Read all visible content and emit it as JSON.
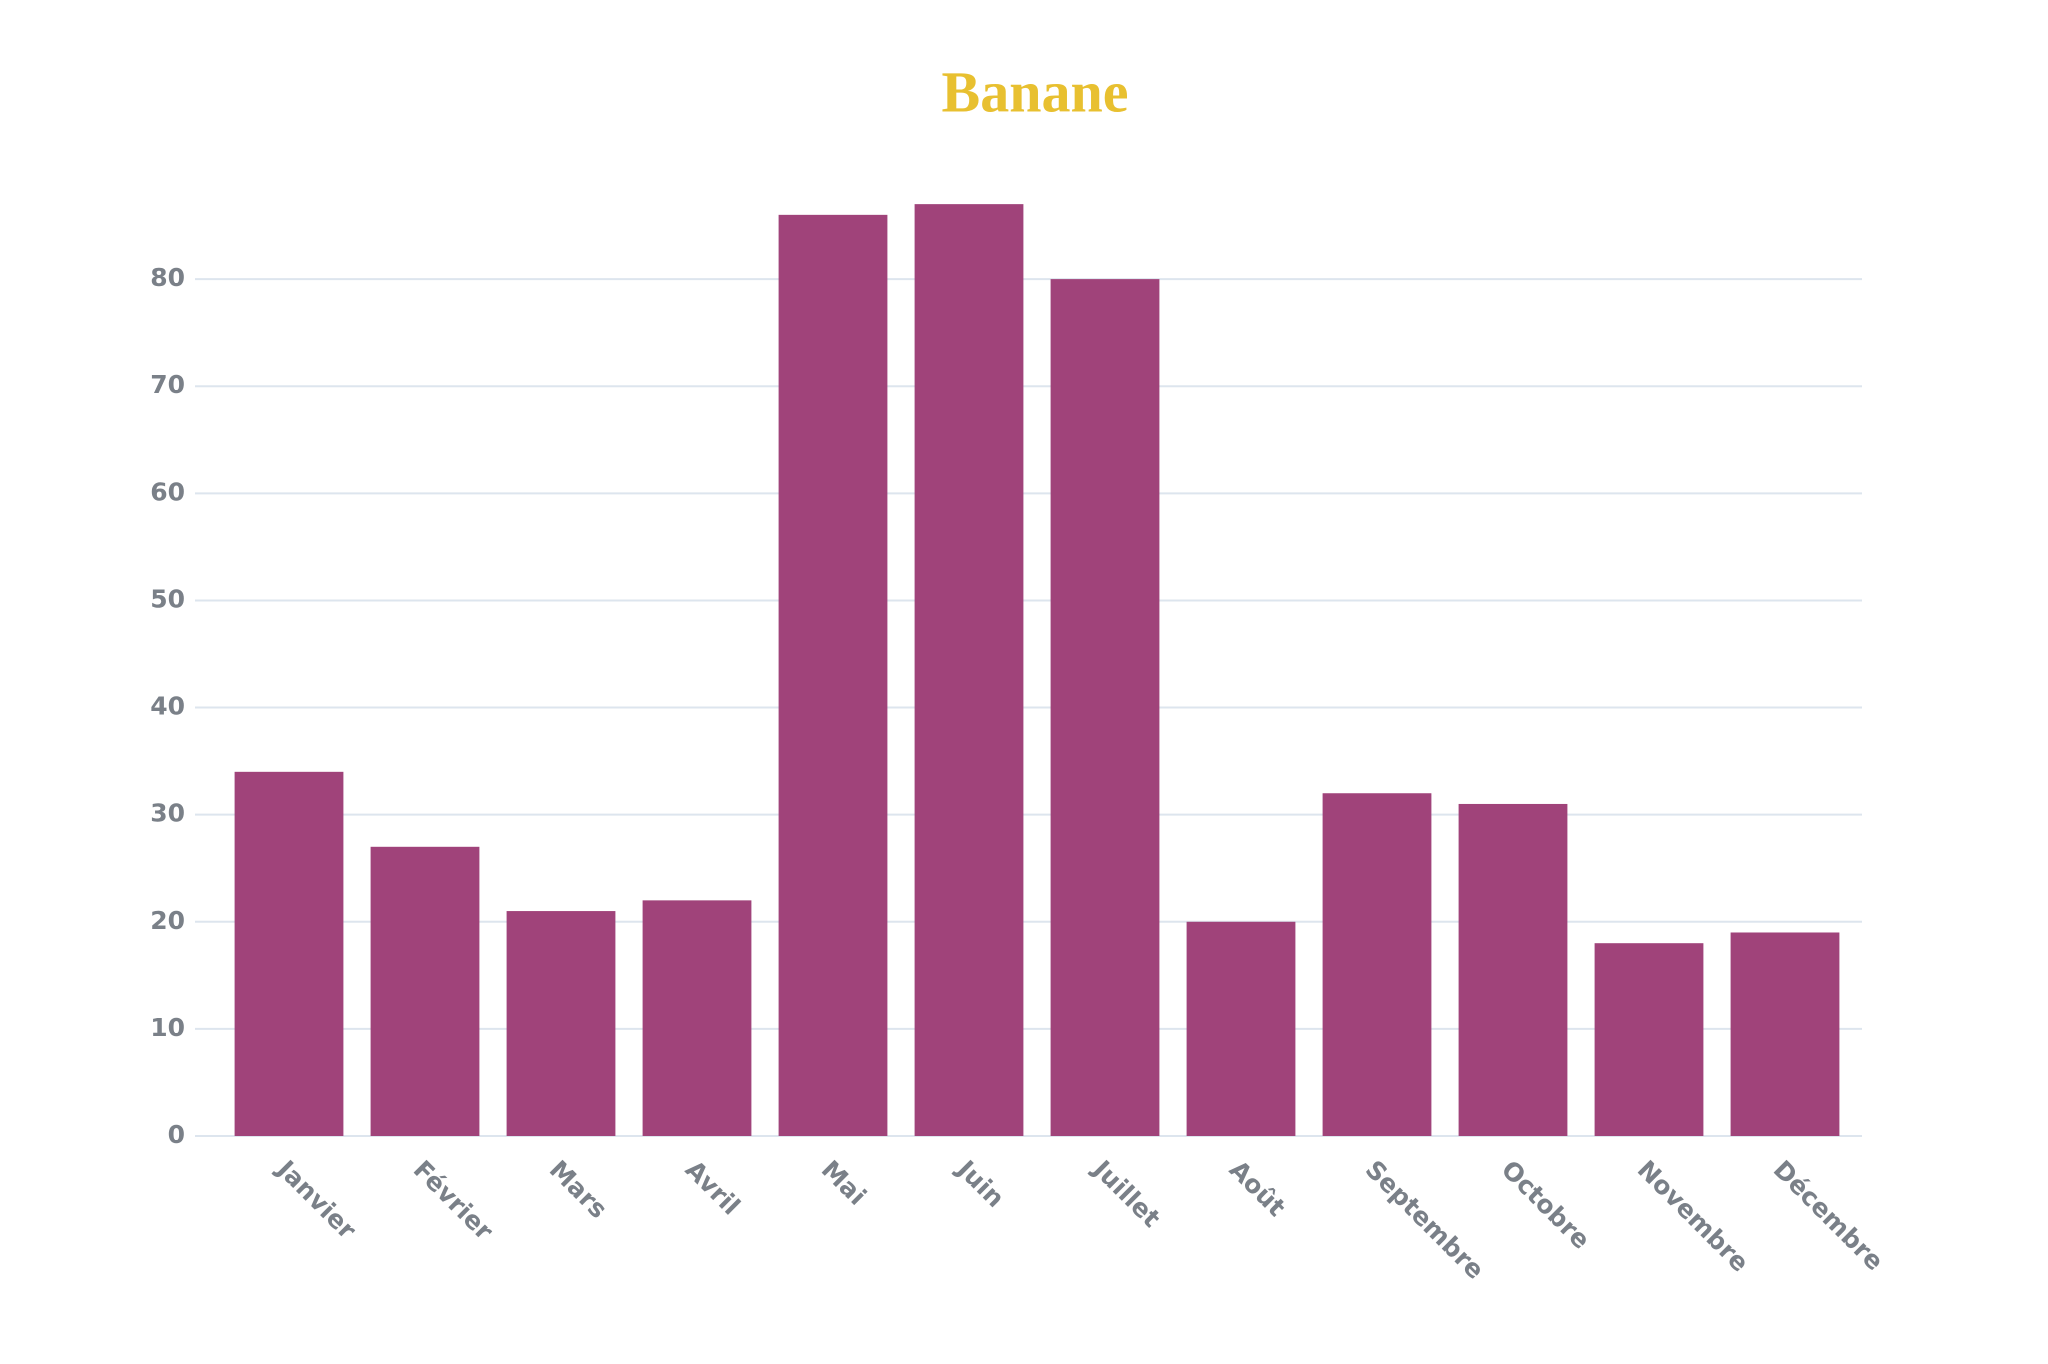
{
  "chart_data": {
    "type": "bar",
    "title": "Banane",
    "categories": [
      "Janvier",
      "Février",
      "Mars",
      "Avril",
      "Mai",
      "Juin",
      "Juillet",
      "Août",
      "Septembre",
      "Octobre",
      "Novembre",
      "Décembre"
    ],
    "values": [
      34,
      27,
      21,
      22,
      86,
      87,
      80,
      20,
      32,
      31,
      18,
      19
    ],
    "color": "#a0437a",
    "ylim": [
      0,
      90
    ],
    "yticks": [
      0,
      10,
      20,
      30,
      40,
      50,
      60,
      70,
      80
    ],
    "grid": true
  }
}
